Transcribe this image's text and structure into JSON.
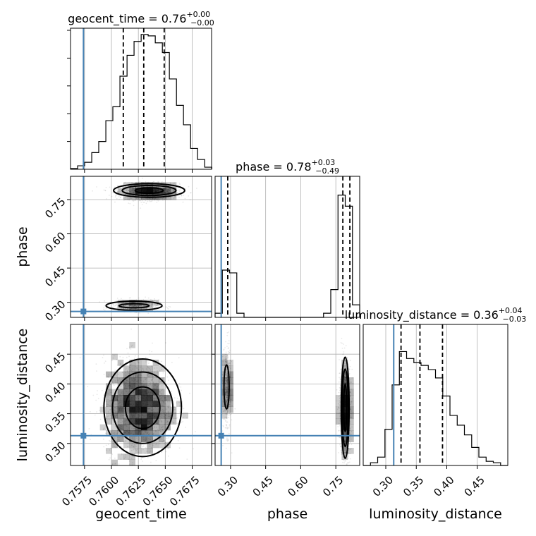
{
  "chart_data": {
    "type": "corner",
    "parameters": [
      {
        "key": "geocent_time",
        "label": "geocent_time",
        "range": [
          0.7562,
          0.7693
        ],
        "ticks": [
          0.7575,
          0.76,
          0.7625,
          0.765,
          0.7675
        ],
        "tick_labels": [
          "0.7575",
          "0.7600",
          "0.7625",
          "0.7650",
          "0.7675"
        ],
        "truth": 0.7574
      },
      {
        "key": "phase",
        "label": "phase",
        "range": [
          0.234,
          0.852
        ],
        "ticks": [
          0.3,
          0.45,
          0.6,
          0.75
        ],
        "tick_labels": [
          "0.30",
          "0.45",
          "0.60",
          "0.75"
        ],
        "truth": 0.26
      },
      {
        "key": "luminosity_distance",
        "label": "luminosity_distance",
        "range": [
          0.263,
          0.5
        ],
        "ticks": [
          0.3,
          0.35,
          0.4,
          0.45
        ],
        "tick_labels": [
          "0.30",
          "0.35",
          "0.40",
          "0.45"
        ],
        "truth": 0.313
      }
    ],
    "titles": [
      {
        "param": "geocent_time",
        "text": "geocent_time = 0.76",
        "plus": "+0.00",
        "minus": "−0.00"
      },
      {
        "param": "phase",
        "text": "phase = 0.78",
        "plus": "+0.03",
        "minus": "−0.49"
      },
      {
        "param": "luminosity_distance",
        "text": "luminosity_distance = 0.36",
        "plus": "+0.04",
        "minus": "−0.03"
      }
    ],
    "histograms": {
      "geocent_time": {
        "bin_edges": [
          0.7562,
          0.75686,
          0.75751,
          0.75817,
          0.75882,
          0.75948,
          0.76013,
          0.76079,
          0.76145,
          0.7621,
          0.76276,
          0.76341,
          0.76407,
          0.76473,
          0.76538,
          0.76604,
          0.76669,
          0.76735,
          0.768,
          0.76866,
          0.76932
        ],
        "counts": [
          0.005,
          0.025,
          0.05,
          0.12,
          0.2,
          0.35,
          0.45,
          0.67,
          0.82,
          0.92,
          0.97,
          0.96,
          0.91,
          0.84,
          0.65,
          0.46,
          0.32,
          0.15,
          0.07,
          0.015
        ],
        "quantiles": [
          0.7611,
          0.763,
          0.7649
        ]
      },
      "phase": {
        "bin_edges": [
          0.234,
          0.2649,
          0.2958,
          0.3267,
          0.3576,
          0.3885,
          0.4194,
          0.4503,
          0.4812,
          0.5121,
          0.543,
          0.5739,
          0.6048,
          0.6357,
          0.6666,
          0.6975,
          0.7284,
          0.7593,
          0.7902,
          0.8211,
          0.852
        ],
        "counts": [
          0.03,
          0.34,
          0.32,
          0.03,
          0.0,
          0.0,
          0.0,
          0.0,
          0.0,
          0.0,
          0.0,
          0.0,
          0.0,
          0.0,
          0.0,
          0.03,
          0.2,
          0.88,
          0.8,
          0.09
        ],
        "quantiles": [
          0.288,
          0.78,
          0.81
        ]
      },
      "luminosity_distance": {
        "bin_edges": [
          0.263,
          0.2749,
          0.2867,
          0.2986,
          0.3104,
          0.3223,
          0.3341,
          0.346,
          0.3578,
          0.3697,
          0.3815,
          0.3934,
          0.4052,
          0.4171,
          0.4289,
          0.4408,
          0.4526,
          0.4645,
          0.4763,
          0.4882,
          0.5
        ],
        "counts": [
          0.0,
          0.02,
          0.06,
          0.26,
          0.58,
          0.82,
          0.77,
          0.74,
          0.72,
          0.69,
          0.63,
          0.5,
          0.36,
          0.29,
          0.22,
          0.13,
          0.06,
          0.03,
          0.02,
          0.0
        ],
        "quantiles": [
          0.325,
          0.356,
          0.393
        ]
      }
    },
    "clusters_2d": [
      {
        "x": "geocent_time",
        "y": "phase",
        "center": [
          0.7635,
          0.785
        ],
        "sd": [
          0.0014,
          0.018
        ],
        "weight": 1200
      },
      {
        "x": "geocent_time",
        "y": "phase",
        "center": [
          0.7622,
          0.285
        ],
        "sd": [
          0.0011,
          0.013
        ],
        "weight": 380
      },
      {
        "x": "geocent_time",
        "y": "luminosity_distance",
        "center": [
          0.7625,
          0.36
        ],
        "sd": [
          0.0016,
          0.04
        ],
        "weight": 1500
      },
      {
        "x": "phase",
        "y": "luminosity_distance",
        "center": [
          0.285,
          0.39
        ],
        "sd": [
          0.008,
          0.035
        ],
        "weight": 450
      },
      {
        "x": "phase",
        "y": "luminosity_distance",
        "center": [
          0.79,
          0.355
        ],
        "sd": [
          0.012,
          0.04
        ],
        "weight": 1100
      }
    ],
    "contours_2d": [
      {
        "x": "geocent_time",
        "y": "phase",
        "center": [
          0.7635,
          0.79
        ],
        "radii": [
          [
            0.0013,
            0.012
          ],
          [
            0.0025,
            0.022
          ],
          [
            0.0033,
            0.03
          ]
        ]
      },
      {
        "x": "geocent_time",
        "y": "phase",
        "center": [
          0.7621,
          0.285
        ],
        "radii": [
          [
            0.0014,
            0.009
          ],
          [
            0.0026,
            0.02
          ]
        ]
      },
      {
        "x": "geocent_time",
        "y": "luminosity_distance",
        "center": [
          0.7629,
          0.36
        ],
        "radii": [
          [
            0.0016,
            0.035
          ],
          [
            0.0028,
            0.06
          ],
          [
            0.0036,
            0.082
          ]
        ]
      },
      {
        "x": "phase",
        "y": "luminosity_distance",
        "center": [
          0.283,
          0.395
        ],
        "radii": [
          [
            0.011,
            0.037
          ]
        ]
      },
      {
        "x": "phase",
        "y": "luminosity_distance",
        "center": [
          0.79,
          0.36
        ],
        "radii": [
          [
            0.006,
            0.04
          ],
          [
            0.013,
            0.065
          ],
          [
            0.017,
            0.085
          ]
        ]
      }
    ]
  }
}
